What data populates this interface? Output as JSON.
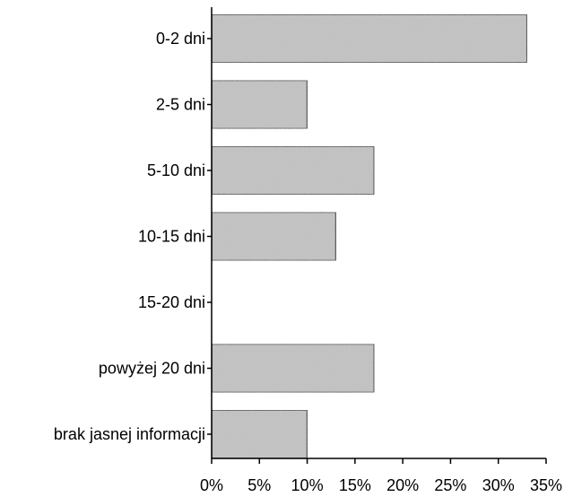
{
  "chart_data": {
    "type": "bar",
    "orientation": "horizontal",
    "title": "",
    "xlabel": "",
    "ylabel": "",
    "categories": [
      "0-2 dni",
      "2-5 dni",
      "5-10 dni",
      "10-15 dni",
      "15-20 dni",
      "powyżej 20 dni",
      "brak jasnej informacji"
    ],
    "values": [
      33,
      10,
      17,
      13,
      0,
      17,
      10
    ],
    "xlim": [
      0,
      35
    ],
    "xticks": [
      0,
      5,
      10,
      15,
      20,
      25,
      30,
      35
    ],
    "tick_labels": [
      "0%",
      "5%",
      "10%",
      "15%",
      "20%",
      "25%",
      "30%",
      "35%"
    ],
    "bar_color": "#c8c8c8",
    "grid": false,
    "legend": "none"
  }
}
